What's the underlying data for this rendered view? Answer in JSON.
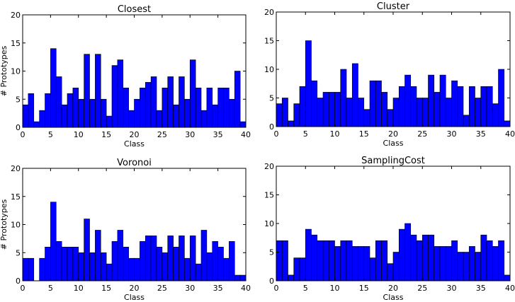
{
  "chart_data": [
    {
      "type": "bar",
      "title": "Closest",
      "xlabel": "Class",
      "ylabel": "# Prototypes",
      "xlim": [
        0,
        40
      ],
      "ylim": [
        0,
        20
      ],
      "xticks": [
        "0",
        "5",
        "10",
        "15",
        "20",
        "25",
        "30",
        "35",
        "40"
      ],
      "yticks": [
        "0",
        "5",
        "10",
        "15",
        "20"
      ],
      "bar_color": "#0000ff",
      "values": [
        4,
        6,
        1,
        3,
        6,
        14,
        9,
        4,
        6,
        7,
        5,
        13,
        5,
        13,
        5,
        2,
        11,
        12,
        7,
        3,
        5,
        7,
        8,
        9,
        3,
        7,
        9,
        4,
        9,
        5,
        12,
        7,
        3,
        7,
        4,
        7,
        7,
        5,
        10,
        1
      ]
    },
    {
      "type": "bar",
      "title": "Cluster",
      "xlabel": "Class",
      "ylabel": "",
      "xlim": [
        0,
        40
      ],
      "ylim": [
        0,
        20
      ],
      "xticks": [
        "0",
        "5",
        "10",
        "15",
        "20",
        "25",
        "30",
        "35",
        "40"
      ],
      "yticks": [
        "0",
        "5",
        "10",
        "15",
        "20"
      ],
      "bar_color": "#0000ff",
      "values": [
        4,
        5,
        1,
        4,
        7,
        15,
        8,
        5,
        6,
        6,
        6,
        10,
        5,
        11,
        5,
        3,
        8,
        8,
        6,
        3,
        5,
        7,
        9,
        7,
        5,
        5,
        9,
        6,
        9,
        5,
        8,
        7,
        2,
        7,
        5,
        7,
        7,
        4,
        10,
        1
      ]
    },
    {
      "type": "bar",
      "title": "Voronoi",
      "xlabel": "Class",
      "ylabel": "# Prototypes",
      "xlim": [
        0,
        40
      ],
      "ylim": [
        0,
        20
      ],
      "xticks": [
        "0",
        "5",
        "10",
        "15",
        "20",
        "25",
        "30",
        "35",
        "40"
      ],
      "yticks": [
        "0",
        "5",
        "10",
        "15",
        "20"
      ],
      "bar_color": "#0000ff",
      "values": [
        4,
        4,
        0,
        4,
        6,
        14,
        7,
        6,
        6,
        6,
        5,
        11,
        5,
        9,
        5,
        3,
        7,
        9,
        6,
        4,
        4,
        7,
        8,
        8,
        6,
        5,
        8,
        6,
        8,
        4,
        8,
        3,
        9,
        5,
        7,
        6,
        4,
        7,
        1,
        1
      ]
    },
    {
      "type": "bar",
      "title": "SamplingCost",
      "xlabel": "Class",
      "ylabel": "",
      "xlim": [
        0,
        40
      ],
      "ylim": [
        0,
        20
      ],
      "xticks": [
        "0",
        "5",
        "10",
        "15",
        "20",
        "25",
        "30",
        "35",
        "40"
      ],
      "yticks": [
        "0",
        "5",
        "10",
        "15",
        "20"
      ],
      "bar_color": "#0000ff",
      "values": [
        7,
        7,
        1,
        4,
        4,
        9,
        8,
        7,
        7,
        7,
        6,
        7,
        7,
        6,
        6,
        6,
        4,
        7,
        7,
        3,
        5,
        9,
        10,
        8,
        7,
        8,
        8,
        6,
        6,
        6,
        7,
        5,
        5,
        6,
        5,
        8,
        7,
        6,
        7,
        1
      ]
    }
  ]
}
